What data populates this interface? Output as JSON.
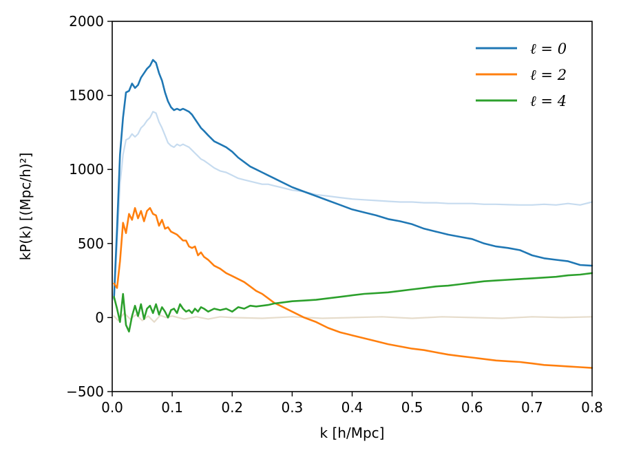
{
  "chart_data": {
    "type": "line",
    "xlabel": "k [h/Mpc]",
    "ylabel": "kP(k) [(Mpc/h)²]",
    "xlim": [
      0.0,
      0.8
    ],
    "ylim": [
      -500,
      2000
    ],
    "xticks": [
      "0.0",
      "0.1",
      "0.2",
      "0.3",
      "0.4",
      "0.5",
      "0.6",
      "0.7",
      "0.8"
    ],
    "yticks": [
      "−500",
      "0",
      "500",
      "1000",
      "1500",
      "2000"
    ],
    "grid": false,
    "legend_position": "top-right",
    "series": [
      {
        "name": "ℓ = 0",
        "color": "#1f77b4",
        "x": [
          0.003,
          0.008,
          0.013,
          0.018,
          0.023,
          0.028,
          0.033,
          0.038,
          0.043,
          0.048,
          0.053,
          0.058,
          0.063,
          0.068,
          0.073,
          0.078,
          0.083,
          0.088,
          0.093,
          0.098,
          0.103,
          0.108,
          0.113,
          0.118,
          0.123,
          0.128,
          0.133,
          0.138,
          0.143,
          0.148,
          0.153,
          0.16,
          0.17,
          0.18,
          0.19,
          0.2,
          0.21,
          0.22,
          0.23,
          0.24,
          0.25,
          0.26,
          0.27,
          0.28,
          0.3,
          0.32,
          0.34,
          0.36,
          0.38,
          0.4,
          0.42,
          0.44,
          0.46,
          0.48,
          0.5,
          0.52,
          0.54,
          0.56,
          0.58,
          0.6,
          0.62,
          0.64,
          0.66,
          0.68,
          0.7,
          0.72,
          0.74,
          0.76,
          0.78,
          0.8
        ],
        "y": [
          130,
          600,
          1100,
          1350,
          1520,
          1530,
          1580,
          1550,
          1570,
          1620,
          1650,
          1680,
          1700,
          1740,
          1720,
          1650,
          1600,
          1520,
          1460,
          1420,
          1400,
          1410,
          1400,
          1410,
          1400,
          1390,
          1370,
          1340,
          1310,
          1280,
          1260,
          1230,
          1190,
          1170,
          1150,
          1120,
          1080,
          1050,
          1020,
          1000,
          980,
          960,
          940,
          920,
          880,
          850,
          820,
          790,
          760,
          730,
          710,
          690,
          665,
          650,
          630,
          600,
          580,
          560,
          545,
          530,
          500,
          480,
          470,
          455,
          420,
          400,
          390,
          380,
          355,
          350
        ]
      },
      {
        "name": "ℓ = 2",
        "color": "#ff7f0e",
        "x": [
          0.003,
          0.008,
          0.013,
          0.018,
          0.023,
          0.028,
          0.033,
          0.038,
          0.043,
          0.048,
          0.053,
          0.058,
          0.063,
          0.068,
          0.073,
          0.078,
          0.083,
          0.088,
          0.093,
          0.098,
          0.103,
          0.108,
          0.113,
          0.118,
          0.123,
          0.128,
          0.133,
          0.138,
          0.143,
          0.148,
          0.153,
          0.16,
          0.17,
          0.18,
          0.19,
          0.2,
          0.21,
          0.22,
          0.23,
          0.24,
          0.25,
          0.26,
          0.27,
          0.28,
          0.3,
          0.32,
          0.34,
          0.36,
          0.38,
          0.4,
          0.42,
          0.44,
          0.46,
          0.48,
          0.5,
          0.52,
          0.54,
          0.56,
          0.58,
          0.6,
          0.62,
          0.64,
          0.66,
          0.68,
          0.7,
          0.72,
          0.74,
          0.76,
          0.78,
          0.8
        ],
        "y": [
          230,
          200,
          380,
          640,
          570,
          700,
          660,
          740,
          670,
          720,
          650,
          720,
          740,
          700,
          690,
          620,
          660,
          600,
          610,
          580,
          570,
          560,
          540,
          520,
          520,
          480,
          470,
          480,
          420,
          440,
          410,
          390,
          350,
          330,
          300,
          280,
          260,
          240,
          210,
          180,
          160,
          130,
          100,
          80,
          40,
          0,
          -30,
          -70,
          -100,
          -120,
          -140,
          -160,
          -180,
          -195,
          -210,
          -220,
          -235,
          -250,
          -260,
          -270,
          -280,
          -290,
          -295,
          -300,
          -310,
          -320,
          -325,
          -330,
          -335,
          -340
        ]
      },
      {
        "name": "ℓ = 4",
        "color": "#2ca02c",
        "x": [
          0.003,
          0.008,
          0.013,
          0.018,
          0.023,
          0.028,
          0.033,
          0.038,
          0.043,
          0.048,
          0.053,
          0.058,
          0.063,
          0.068,
          0.073,
          0.078,
          0.083,
          0.088,
          0.093,
          0.098,
          0.103,
          0.108,
          0.113,
          0.118,
          0.123,
          0.128,
          0.133,
          0.138,
          0.143,
          0.148,
          0.153,
          0.16,
          0.17,
          0.18,
          0.19,
          0.2,
          0.21,
          0.22,
          0.23,
          0.24,
          0.25,
          0.26,
          0.27,
          0.28,
          0.3,
          0.32,
          0.34,
          0.36,
          0.38,
          0.4,
          0.42,
          0.44,
          0.46,
          0.48,
          0.5,
          0.52,
          0.54,
          0.56,
          0.58,
          0.6,
          0.62,
          0.64,
          0.66,
          0.68,
          0.7,
          0.72,
          0.74,
          0.76,
          0.78,
          0.8
        ],
        "y": [
          140,
          60,
          -30,
          160,
          -50,
          -95,
          10,
          80,
          10,
          90,
          -10,
          60,
          80,
          30,
          90,
          20,
          70,
          40,
          0,
          50,
          60,
          30,
          90,
          60,
          40,
          50,
          30,
          60,
          40,
          70,
          60,
          40,
          60,
          50,
          60,
          40,
          70,
          60,
          80,
          75,
          80,
          85,
          95,
          100,
          110,
          115,
          120,
          130,
          140,
          150,
          160,
          165,
          170,
          180,
          190,
          200,
          210,
          215,
          225,
          235,
          245,
          250,
          255,
          260,
          265,
          270,
          275,
          285,
          290,
          300
        ]
      },
      {
        "color": "#c6dbef",
        "x": [
          0.003,
          0.008,
          0.013,
          0.018,
          0.023,
          0.028,
          0.033,
          0.038,
          0.043,
          0.048,
          0.053,
          0.058,
          0.063,
          0.068,
          0.073,
          0.078,
          0.083,
          0.088,
          0.093,
          0.098,
          0.103,
          0.108,
          0.113,
          0.118,
          0.123,
          0.128,
          0.133,
          0.138,
          0.143,
          0.148,
          0.153,
          0.16,
          0.17,
          0.18,
          0.19,
          0.2,
          0.21,
          0.22,
          0.23,
          0.24,
          0.25,
          0.26,
          0.27,
          0.28,
          0.3,
          0.32,
          0.34,
          0.36,
          0.38,
          0.4,
          0.42,
          0.44,
          0.46,
          0.48,
          0.5,
          0.52,
          0.54,
          0.56,
          0.58,
          0.6,
          0.62,
          0.64,
          0.66,
          0.68,
          0.7,
          0.72,
          0.74,
          0.76,
          0.78,
          0.8
        ],
        "y": [
          120,
          500,
          900,
          1100,
          1200,
          1210,
          1240,
          1220,
          1240,
          1280,
          1300,
          1330,
          1350,
          1390,
          1380,
          1320,
          1280,
          1230,
          1180,
          1160,
          1150,
          1170,
          1160,
          1170,
          1160,
          1150,
          1130,
          1110,
          1090,
          1070,
          1060,
          1040,
          1010,
          990,
          980,
          960,
          940,
          930,
          920,
          910,
          900,
          900,
          890,
          880,
          860,
          850,
          830,
          820,
          810,
          800,
          795,
          790,
          785,
          780,
          780,
          775,
          775,
          770,
          770,
          770,
          765,
          765,
          762,
          760,
          760,
          765,
          760,
          770,
          760,
          780
        ]
      },
      {
        "color": "#e6dccb",
        "x": [
          0.003,
          0.01,
          0.02,
          0.03,
          0.04,
          0.05,
          0.06,
          0.07,
          0.08,
          0.09,
          0.1,
          0.12,
          0.14,
          0.16,
          0.18,
          0.2,
          0.25,
          0.3,
          0.35,
          0.4,
          0.45,
          0.5,
          0.55,
          0.6,
          0.65,
          0.7,
          0.75,
          0.8
        ],
        "y": [
          10,
          -20,
          30,
          -10,
          20,
          -20,
          10,
          -30,
          15,
          0,
          10,
          -10,
          5,
          -10,
          5,
          0,
          -5,
          5,
          -5,
          0,
          5,
          -5,
          5,
          0,
          -5,
          5,
          0,
          5
        ]
      }
    ]
  }
}
